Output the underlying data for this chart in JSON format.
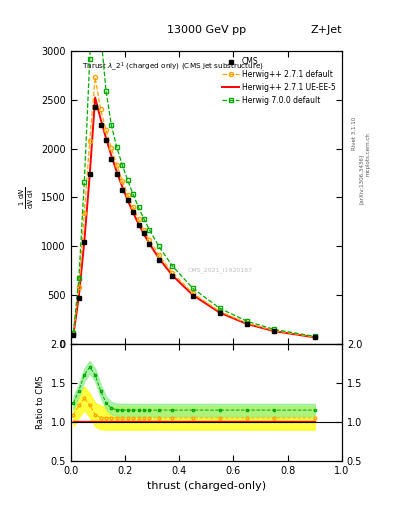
{
  "title_top": "13000 GeV pp",
  "title_right": "Z+Jet",
  "plot_title": "Thrust $\\lambda\\_2^1$ (charged only) (CMS jet substructure)",
  "xlabel": "thrust (charged-only)",
  "ylabel": "$\\frac{1}{\\mathrm{d}N}\\frac{\\mathrm{d}N}{\\mathrm{d}\\lambda}$",
  "ylabel_ratio": "Ratio to CMS",
  "watermark": "CMS_2021_I1920187",
  "label_cms": "CMS",
  "label_h271d": "Herwig++ 2.7.1 default",
  "label_h271u": "Herwig++ 2.7.1 UE-EE-5",
  "label_h700": "Herwig 7.0.0 default",
  "label_rivet": "Rivet 3.1.10",
  "label_arxiv": "[arXiv:1306.3436]",
  "label_mcplots": "mcplots.cern.ch",
  "thrust_bins": [
    0.0,
    0.02,
    0.04,
    0.06,
    0.08,
    0.1,
    0.12,
    0.14,
    0.16,
    0.18,
    0.2,
    0.22,
    0.24,
    0.26,
    0.28,
    0.3,
    0.35,
    0.4,
    0.5,
    0.6,
    0.7,
    0.8,
    1.0
  ],
  "color_cms": "#000000",
  "color_h271d": "#FFA500",
  "color_h271u": "#FF0000",
  "color_h700": "#00AA00",
  "ylim_main": [
    0,
    3000
  ],
  "ylim_ratio": [
    0.5,
    2.0
  ],
  "yticks_main": [
    0,
    500,
    1000,
    1500,
    2000,
    2500,
    3000
  ],
  "yticks_ratio": [
    0.5,
    1.0,
    1.5,
    2.0
  ],
  "bg_color": "#ffffff"
}
